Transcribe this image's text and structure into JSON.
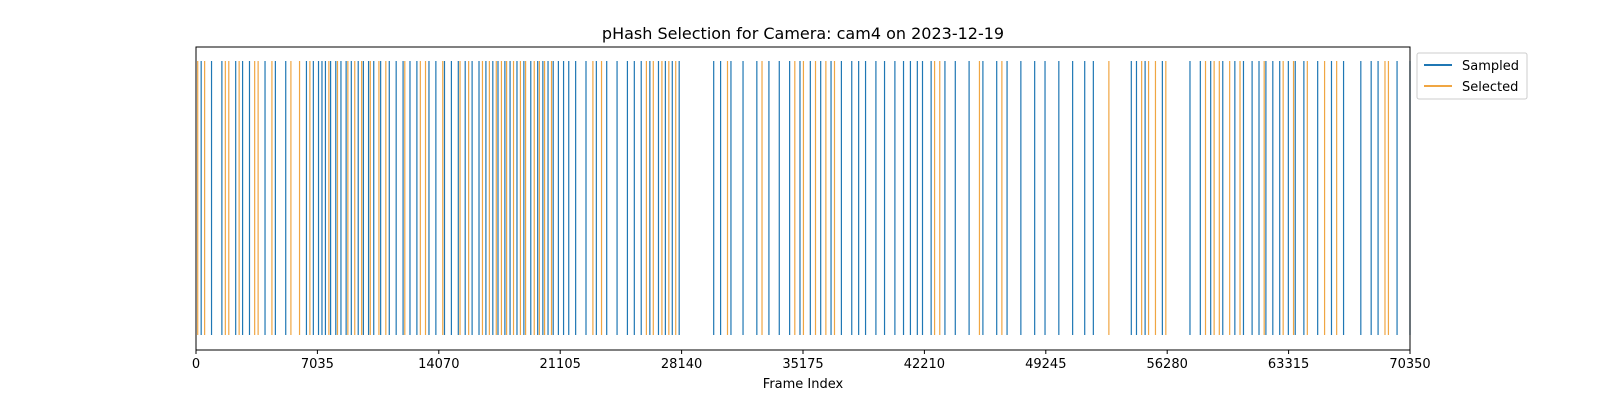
{
  "chart_data": {
    "type": "event_plot",
    "title": "pHash Selection for Camera: cam4 on 2023-12-19",
    "xlabel": "Frame Index",
    "ylabel": "",
    "xlim": [
      0,
      70350
    ],
    "xticks": [
      0,
      7035,
      14070,
      21105,
      28140,
      35175,
      42210,
      49245,
      56280,
      63315,
      70350
    ],
    "grid": false,
    "legend_position": "outside-top-right",
    "series": [
      {
        "name": "Sampled",
        "color": "#1f77b4",
        "x": [
          300,
          900,
          1500,
          2300,
          2700,
          3100,
          4000,
          4600,
          5200,
          6400,
          6800,
          7100,
          7300,
          7500,
          7800,
          8100,
          8400,
          8700,
          9000,
          9400,
          9700,
          10000,
          10300,
          10700,
          11200,
          11600,
          12000,
          12400,
          12800,
          13500,
          13900,
          14400,
          14800,
          15200,
          15600,
          16000,
          16400,
          16800,
          17200,
          17500,
          17900,
          18200,
          18600,
          19000,
          19400,
          19800,
          20100,
          20400,
          20700,
          21000,
          21300,
          21600,
          22000,
          22600,
          23200,
          23800,
          24400,
          25000,
          25400,
          25800,
          26300,
          26800,
          27200,
          27600,
          28000,
          30000,
          30400,
          31000,
          31700,
          32500,
          33200,
          33800,
          34400,
          35000,
          35600,
          36200,
          36800,
          37400,
          38000,
          38400,
          38800,
          39400,
          39900,
          40500,
          41000,
          41400,
          41800,
          42100,
          42600,
          43400,
          44000,
          44800,
          45600,
          46400,
          47000,
          47800,
          48600,
          49200,
          50000,
          50800,
          51500,
          52000,
          54200,
          54500,
          55000,
          56000,
          57600,
          58200,
          58800,
          59500,
          60200,
          60700,
          61200,
          61600,
          62000,
          62400,
          62800,
          63300,
          63700,
          64200,
          65000,
          65800,
          66500,
          67500,
          68100,
          68500,
          69600,
          70350
        ]
      },
      {
        "name": "Selected",
        "color": "#f0a643",
        "x": [
          100,
          500,
          1700,
          1900,
          2500,
          3400,
          3600,
          4400,
          5500,
          6000,
          6600,
          7700,
          8200,
          8800,
          9200,
          9600,
          10100,
          10600,
          11000,
          12100,
          13000,
          13300,
          14300,
          15300,
          15800,
          16600,
          17000,
          17400,
          17700,
          18000,
          18400,
          18800,
          19100,
          19600,
          19900,
          20200,
          20600,
          23000,
          23500,
          26100,
          26500,
          27000,
          27400,
          27800,
          30800,
          32800,
          34700,
          35200,
          35900,
          36500,
          37000,
          42800,
          43100,
          45400,
          46700,
          52900,
          54800,
          55200,
          55600,
          56200,
          58500,
          59000,
          59300,
          59900,
          60500,
          61900,
          63000,
          63600,
          64400,
          65400,
          66100,
          68900,
          69100
        ]
      }
    ]
  }
}
